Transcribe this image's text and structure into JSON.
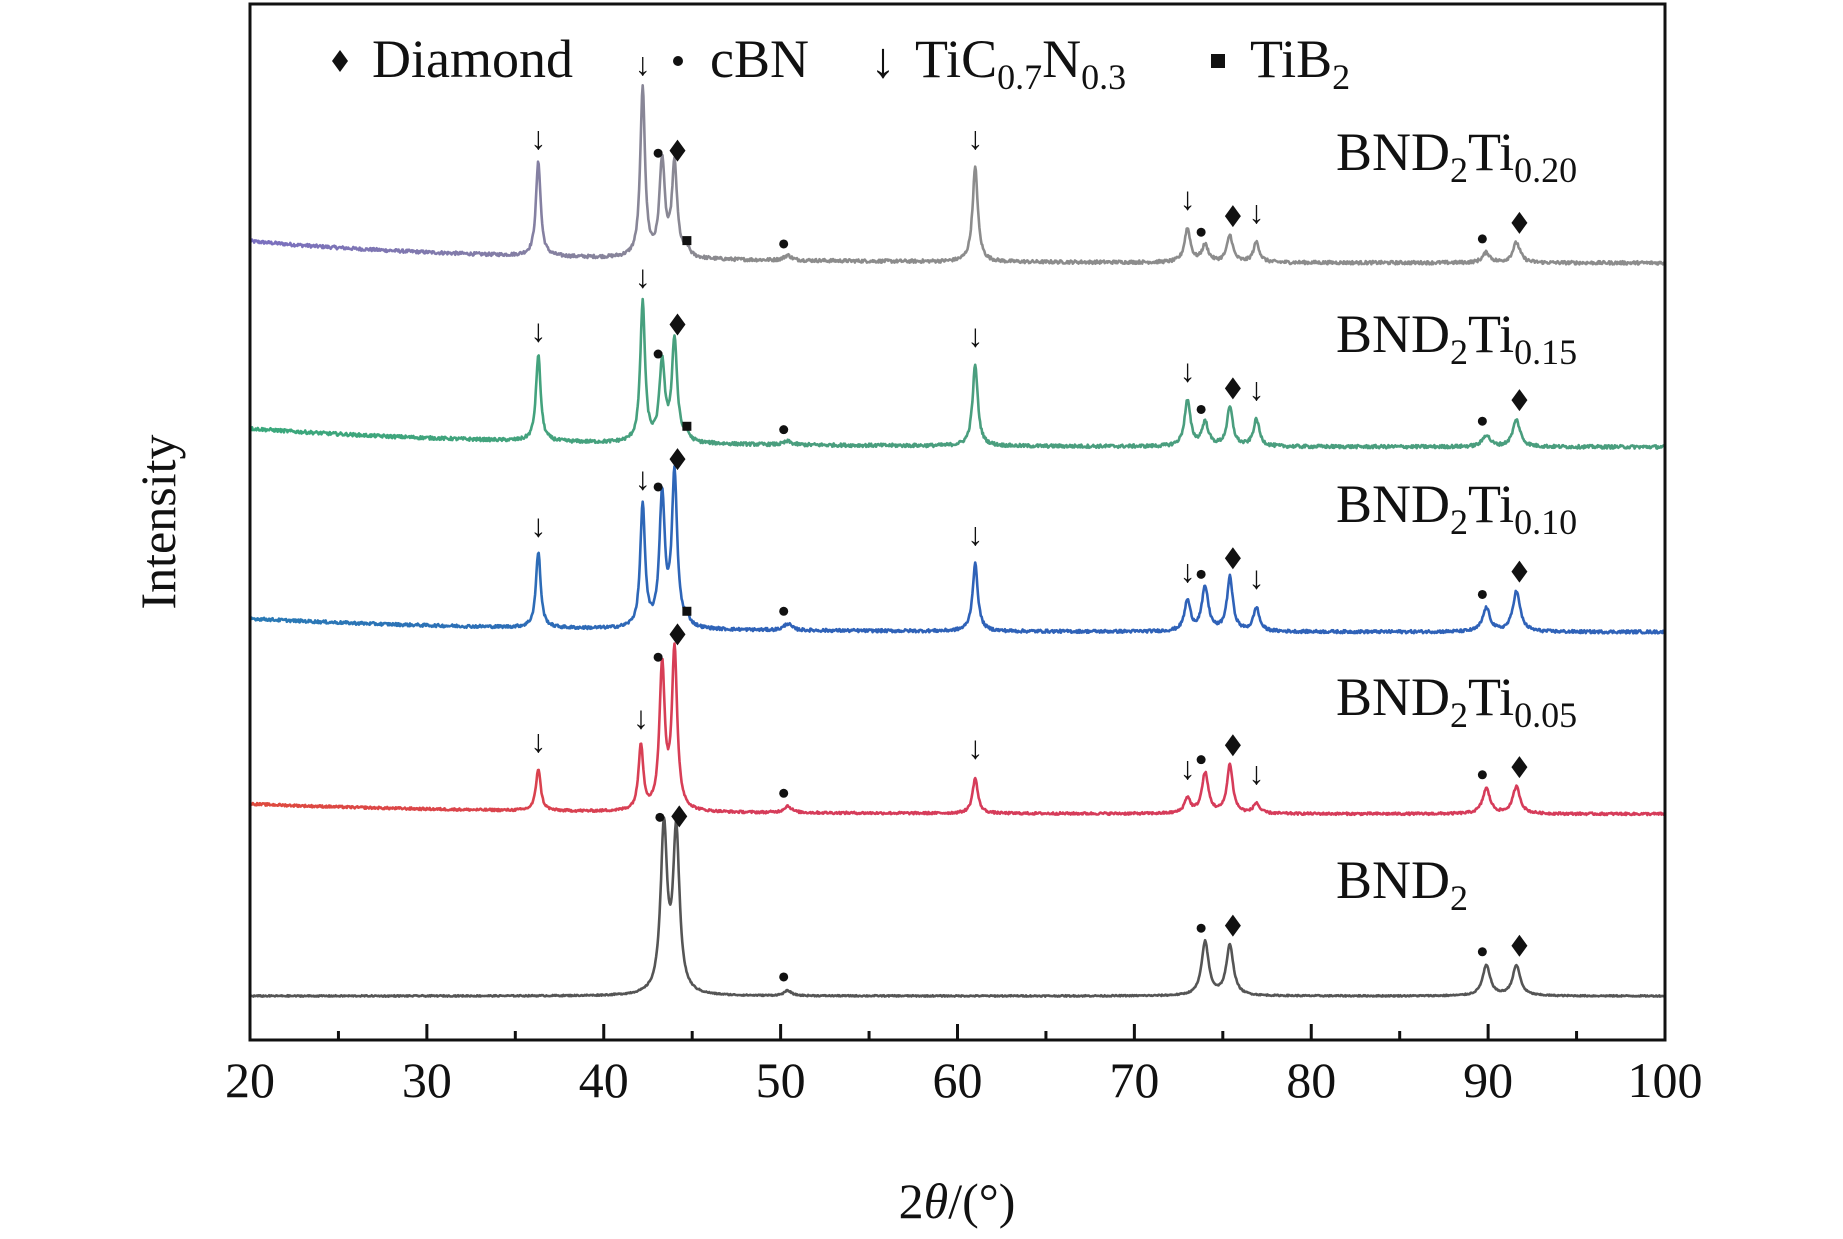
{
  "chart_data": {
    "type": "line",
    "title": "",
    "xlabel": "2θ/(°)",
    "ylabel": "Intensity",
    "xlim": [
      20,
      100
    ],
    "x_ticks": [
      20,
      30,
      40,
      50,
      60,
      70,
      80,
      90,
      100
    ],
    "x_minor_ticks": [
      25,
      35,
      45,
      55,
      65,
      75,
      85,
      95
    ],
    "y_ticks_shown": false,
    "grid": false,
    "legend": {
      "placement": "top",
      "entries": [
        {
          "marker": "diamond",
          "symbol": "◆",
          "label": "Diamond"
        },
        {
          "marker": "circle",
          "symbol": "●",
          "label": "cBN"
        },
        {
          "marker": "arrow",
          "symbol": "↓",
          "label": "TiC",
          "sub1": "0.7",
          "mid": "N",
          "sub2": "0.3"
        },
        {
          "marker": "square",
          "symbol": "■",
          "label": "TiB",
          "sub1": "2"
        }
      ]
    },
    "series": [
      {
        "name": "BND2Ti0.20",
        "label_main": "BND",
        "label_sub1": "2",
        "label_mid": "Ti",
        "label_sub2": "0.20",
        "color": "#8c8c8c",
        "color_start": "#7a6fc0",
        "baseline_level": 4,
        "baseline_start_extra": 0.13,
        "noise": 0.01,
        "peaks": [
          {
            "x": 36.3,
            "h": 0.56,
            "w": 0.16,
            "marker": "arrow"
          },
          {
            "x": 42.2,
            "h": 1.0,
            "w": 0.16,
            "marker": "arrow"
          },
          {
            "x": 43.3,
            "h": 0.57,
            "w": 0.18,
            "marker": "circle"
          },
          {
            "x": 44.0,
            "h": 0.55,
            "w": 0.18,
            "marker": "diamond"
          },
          {
            "x": 44.7,
            "h": 0.05,
            "w": 0.18,
            "marker": "square"
          },
          {
            "x": 50.4,
            "h": 0.03,
            "w": 0.25,
            "marker": "circle"
          },
          {
            "x": 61.0,
            "h": 0.56,
            "w": 0.18,
            "marker": "arrow"
          },
          {
            "x": 73.0,
            "h": 0.2,
            "w": 0.2,
            "marker": "arrow"
          },
          {
            "x": 74.0,
            "h": 0.1,
            "w": 0.22,
            "marker": "circle"
          },
          {
            "x": 75.4,
            "h": 0.16,
            "w": 0.2,
            "marker": "diamond"
          },
          {
            "x": 76.9,
            "h": 0.12,
            "w": 0.2,
            "marker": "arrow"
          },
          {
            "x": 89.9,
            "h": 0.06,
            "w": 0.25,
            "marker": "circle"
          },
          {
            "x": 91.6,
            "h": 0.12,
            "w": 0.25,
            "marker": "diamond"
          }
        ]
      },
      {
        "name": "BND2Ti0.15",
        "label_main": "BND",
        "label_sub1": "2",
        "label_mid": "Ti",
        "label_sub2": "0.15",
        "color": "#4a9e7e",
        "color_start": "#3aa87c",
        "baseline_level": 3,
        "baseline_start_extra": 0.11,
        "noise": 0.01,
        "peaks": [
          {
            "x": 36.3,
            "h": 0.51,
            "w": 0.16,
            "marker": "arrow"
          },
          {
            "x": 42.2,
            "h": 0.83,
            "w": 0.16,
            "marker": "arrow"
          },
          {
            "x": 43.3,
            "h": 0.47,
            "w": 0.18,
            "marker": "circle"
          },
          {
            "x": 44.0,
            "h": 0.61,
            "w": 0.18,
            "marker": "diamond"
          },
          {
            "x": 44.7,
            "h": 0.04,
            "w": 0.18,
            "marker": "square"
          },
          {
            "x": 50.4,
            "h": 0.02,
            "w": 0.25,
            "marker": "circle"
          },
          {
            "x": 61.0,
            "h": 0.48,
            "w": 0.18,
            "marker": "arrow"
          },
          {
            "x": 73.0,
            "h": 0.27,
            "w": 0.2,
            "marker": "arrow"
          },
          {
            "x": 74.0,
            "h": 0.14,
            "w": 0.22,
            "marker": "circle"
          },
          {
            "x": 75.4,
            "h": 0.23,
            "w": 0.2,
            "marker": "diamond"
          },
          {
            "x": 76.9,
            "h": 0.16,
            "w": 0.2,
            "marker": "arrow"
          },
          {
            "x": 89.9,
            "h": 0.07,
            "w": 0.25,
            "marker": "circle"
          },
          {
            "x": 91.6,
            "h": 0.16,
            "w": 0.25,
            "marker": "diamond"
          }
        ]
      },
      {
        "name": "BND2Ti0.10",
        "label_main": "BND",
        "label_sub1": "2",
        "label_mid": "Ti",
        "label_sub2": "0.10",
        "color": "#2f62b8",
        "color_start": "#2a7ab5",
        "baseline_level": 2,
        "baseline_start_extra": 0.08,
        "noise": 0.009,
        "peaks": [
          {
            "x": 36.3,
            "h": 0.45,
            "w": 0.16,
            "marker": "arrow"
          },
          {
            "x": 42.2,
            "h": 0.73,
            "w": 0.16,
            "marker": "arrow"
          },
          {
            "x": 43.3,
            "h": 0.78,
            "w": 0.18,
            "marker": "circle"
          },
          {
            "x": 44.0,
            "h": 0.91,
            "w": 0.18,
            "marker": "diamond"
          },
          {
            "x": 44.7,
            "h": 0.04,
            "w": 0.18,
            "marker": "square"
          },
          {
            "x": 50.4,
            "h": 0.04,
            "w": 0.25,
            "marker": "circle"
          },
          {
            "x": 61.0,
            "h": 0.4,
            "w": 0.18,
            "marker": "arrow"
          },
          {
            "x": 73.0,
            "h": 0.18,
            "w": 0.2,
            "marker": "arrow"
          },
          {
            "x": 74.0,
            "h": 0.26,
            "w": 0.22,
            "marker": "circle"
          },
          {
            "x": 75.4,
            "h": 0.32,
            "w": 0.2,
            "marker": "diamond"
          },
          {
            "x": 76.9,
            "h": 0.14,
            "w": 0.2,
            "marker": "arrow"
          },
          {
            "x": 89.9,
            "h": 0.14,
            "w": 0.25,
            "marker": "circle"
          },
          {
            "x": 91.6,
            "h": 0.24,
            "w": 0.25,
            "marker": "diamond"
          }
        ]
      },
      {
        "name": "BND2Ti0.05",
        "label_main": "BND",
        "label_sub1": "2",
        "label_mid": "Ti",
        "label_sub2": "0.05",
        "color": "#d63c5a",
        "color_start": "#de4a3e",
        "baseline_level": 1,
        "baseline_start_extra": 0.06,
        "noise": 0.007,
        "peaks": [
          {
            "x": 36.3,
            "h": 0.25,
            "w": 0.16,
            "marker": "arrow"
          },
          {
            "x": 42.1,
            "h": 0.39,
            "w": 0.16,
            "marker": "arrow"
          },
          {
            "x": 43.3,
            "h": 0.85,
            "w": 0.18,
            "marker": "circle"
          },
          {
            "x": 44.0,
            "h": 0.95,
            "w": 0.18,
            "marker": "diamond"
          },
          {
            "x": 50.4,
            "h": 0.04,
            "w": 0.25,
            "marker": "circle"
          },
          {
            "x": 61.0,
            "h": 0.21,
            "w": 0.18,
            "marker": "arrow"
          },
          {
            "x": 73.0,
            "h": 0.09,
            "w": 0.2,
            "marker": "arrow"
          },
          {
            "x": 74.0,
            "h": 0.24,
            "w": 0.22,
            "marker": "circle"
          },
          {
            "x": 75.4,
            "h": 0.29,
            "w": 0.2,
            "marker": "diamond"
          },
          {
            "x": 76.9,
            "h": 0.06,
            "w": 0.2,
            "marker": "arrow"
          },
          {
            "x": 89.9,
            "h": 0.15,
            "w": 0.25,
            "marker": "circle"
          },
          {
            "x": 91.6,
            "h": 0.16,
            "w": 0.25,
            "marker": "diamond"
          }
        ]
      },
      {
        "name": "BND2",
        "label_main": "BND",
        "label_sub1": "2",
        "label_mid": "",
        "label_sub2": "",
        "color": "#555555",
        "color_start": "#555555",
        "baseline_level": 0,
        "baseline_start_extra": 0.0,
        "noise": 0.004,
        "peaks": [
          {
            "x": 43.4,
            "h": 0.98,
            "w": 0.22,
            "marker": "circle"
          },
          {
            "x": 44.1,
            "h": 0.95,
            "w": 0.22,
            "marker": "diamond"
          },
          {
            "x": 50.4,
            "h": 0.03,
            "w": 0.25,
            "marker": "circle"
          },
          {
            "x": 74.0,
            "h": 0.32,
            "w": 0.24,
            "marker": "circle"
          },
          {
            "x": 75.4,
            "h": 0.3,
            "w": 0.24,
            "marker": "diamond"
          },
          {
            "x": 89.9,
            "h": 0.18,
            "w": 0.26,
            "marker": "circle"
          },
          {
            "x": 91.6,
            "h": 0.18,
            "w": 0.26,
            "marker": "diamond"
          }
        ]
      }
    ]
  }
}
